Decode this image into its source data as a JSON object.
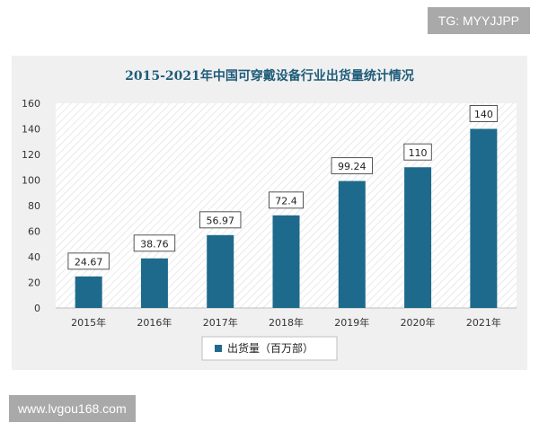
{
  "badge": {
    "text": "TG: MYYJJPP"
  },
  "watermark": {
    "text": "www.lvgou168.com"
  },
  "colors": {
    "bar": "#1e6a8c",
    "title": "#1f5c7a",
    "frame": "#f0f0f0"
  },
  "chart_data": {
    "type": "bar",
    "title": "2015-2021年中国可穿戴设备行业出货量统计情况",
    "categories": [
      "2015年",
      "2016年",
      "2017年",
      "2018年",
      "2019年",
      "2020年",
      "2021年"
    ],
    "series": [
      {
        "name": "出货量（百万部）",
        "values": [
          24.67,
          38.76,
          56.97,
          72.4,
          99.24,
          110,
          140
        ]
      }
    ],
    "value_labels": [
      "24.67",
      "38.76",
      "56.97",
      "72.4",
      "99.24",
      "110",
      "140"
    ],
    "yticks": [
      "0",
      "20",
      "40",
      "60",
      "80",
      "100",
      "120",
      "140",
      "160"
    ],
    "ylim": [
      0,
      160
    ],
    "xlabel": "",
    "ylabel": "",
    "grid": false,
    "legend": "bottom-center"
  }
}
